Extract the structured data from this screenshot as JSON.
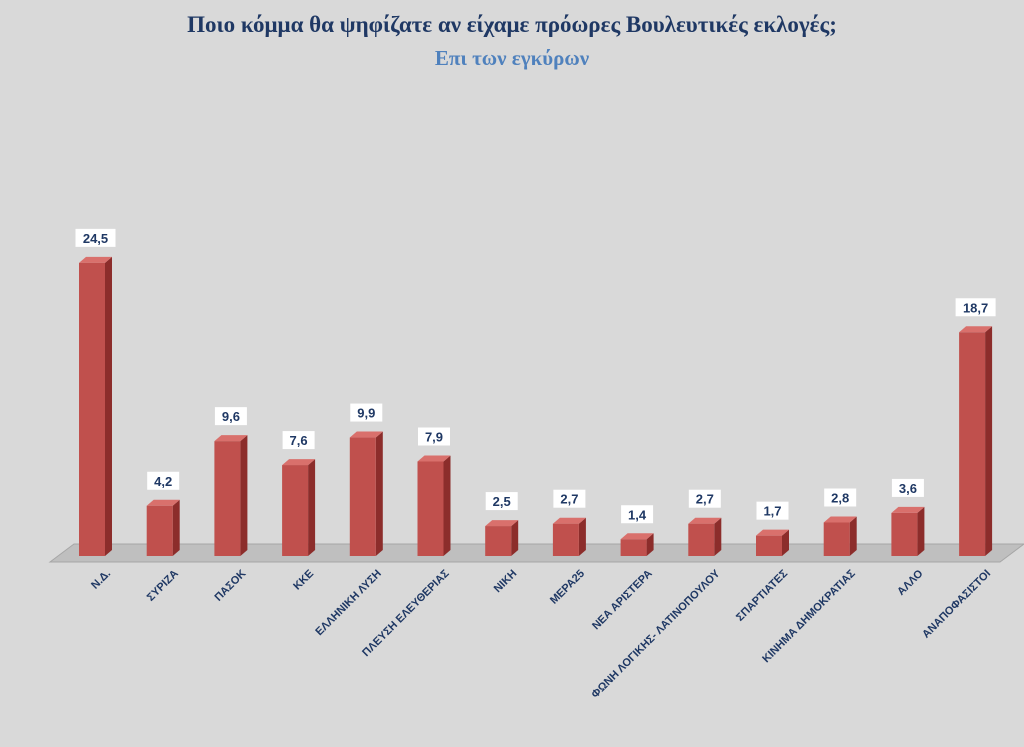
{
  "chart_data": {
    "type": "bar",
    "title": "Ποιο κόμμα θα ψηφίζατε αν είχαμε πρόωρες Βουλευτικές εκλογές;",
    "subtitle": "Επι των εγκύρων",
    "categories": [
      "Ν.Δ.",
      "ΣΥΡΙΖΑ",
      "ΠΑΣΟΚ",
      "ΚΚΕ",
      "ΕΛΛΗΝΙΚΗ ΛΥΣΗ",
      "ΠΛΕΥΣΗ ΕΛΕΥΘΕΡΙΑΣ",
      "ΝΙΚΗ",
      "ΜΕΡΑ25",
      "ΝΕΑ ΑΡΙΣΤΕΡΑ",
      "ΦΩΝΗ ΛΟΓΙΚΗΣ- ΛΑΤΙΝΟΠΟΥΛΟΥ",
      "ΣΠΑΡΤΙΑΤΕΣ",
      "ΚΙΝΗΜΑ ΔΗΜΟΚΡΑΤΙΑΣ",
      "ΑΛΛΟ",
      "ΑΝΑΠΟΦΑΣΙΣΤΟΙ"
    ],
    "values": [
      24.5,
      4.2,
      9.6,
      7.6,
      9.9,
      7.9,
      2.5,
      2.7,
      1.4,
      2.7,
      1.7,
      2.8,
      3.6,
      18.7
    ],
    "data_labels": [
      "24,5",
      "4,2",
      "9,6",
      "7,6",
      "9,9",
      "7,9",
      "2,5",
      "2,7",
      "1,4",
      "2,7",
      "1,7",
      "2,8",
      "3,6",
      "18,7"
    ],
    "ylim": [
      0,
      28
    ],
    "grid": false,
    "legend": "none",
    "colors": {
      "bar_front": "#c0504d",
      "bar_side": "#8c2d2b",
      "bar_top": "#d9706c",
      "floor": "#bfbfbf",
      "floor_edge": "#a6a6a6",
      "label_box": "#ffffff",
      "text": "#1f3864",
      "subtitle": "#4f81bd",
      "background": "#d9d9d9"
    }
  }
}
